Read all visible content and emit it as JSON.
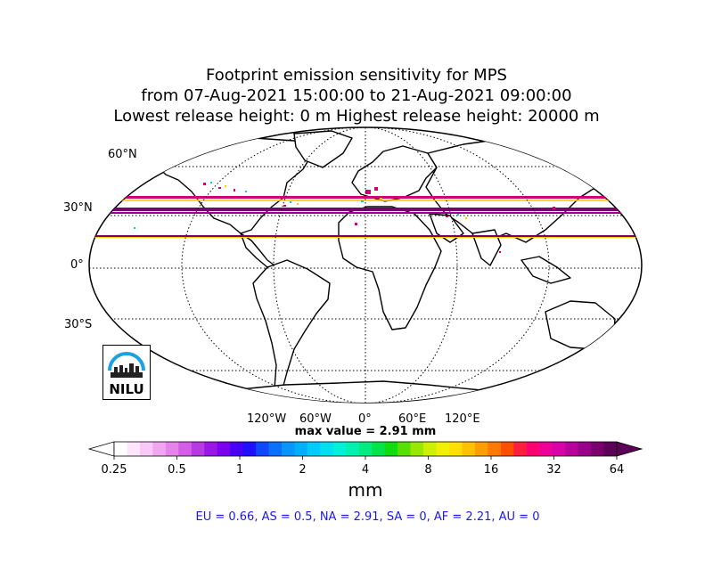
{
  "title": {
    "line1": "Footprint emission sensitivity for MPS",
    "line2": "from 07-Aug-2021 15:00:00 to 21-Aug-2021 09:00:00",
    "line3": "Lowest release height: 0 m      Highest release height: 20000 m"
  },
  "map": {
    "projection": "Robinson (global)",
    "latitude_labels": [
      "60°N",
      "30°N",
      "0°",
      "30°S"
    ],
    "longitude_labels": [
      "120°W",
      "60°W",
      "0°",
      "60°E",
      "120°E"
    ],
    "gridlines": "dotted",
    "coastline_color": "#000000",
    "plume_colors": [
      "#7a006e",
      "#d1007a",
      "#ffcc00",
      "#00ccff"
    ],
    "logo_icon": "nilu-logo-icon",
    "logo_text": "NILU"
  },
  "max_value_text": "max value = 2.91 mm",
  "colorbar": {
    "ticks": [
      "0.25",
      "0.5",
      "1",
      "2",
      "4",
      "8",
      "16",
      "32",
      "64"
    ],
    "unit": "mm",
    "colors": [
      "#ffffff",
      "#fde6fd",
      "#f8c8f8",
      "#f0a6f0",
      "#e683ea",
      "#d45fe6",
      "#b83ae3",
      "#9b17e8",
      "#7a00f0",
      "#4a00f5",
      "#1f10ff",
      "#1048ff",
      "#0a70ff",
      "#0a94ff",
      "#00b0ff",
      "#00ccff",
      "#00e0f0",
      "#00f0d8",
      "#00f0b0",
      "#00ec80",
      "#00e44a",
      "#10dc10",
      "#5ae000",
      "#9ae800",
      "#ccf000",
      "#f0f000",
      "#ffe000",
      "#ffc000",
      "#ff9e00",
      "#ff7a00",
      "#ff5000",
      "#ff2040",
      "#ff0070",
      "#f0009a",
      "#d800a8",
      "#b8009a",
      "#98008a",
      "#7a006e",
      "#5c0058"
    ]
  },
  "summary": "EU = 0.66,  AS = 0.5,  NA = 2.91,  SA = 0,  AF = 2.21,  AU = 0"
}
